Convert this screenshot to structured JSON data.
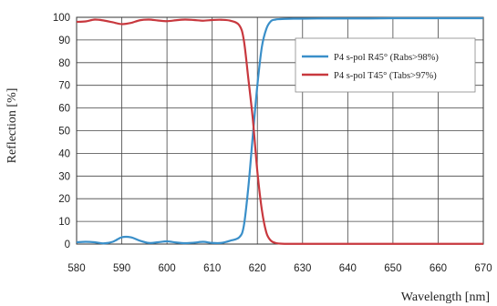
{
  "chart_data": {
    "type": "line",
    "xlabel": "Wavelength [nm]",
    "ylabel": "Reflection [%]",
    "xlim": [
      580,
      670
    ],
    "ylim": [
      0,
      100
    ],
    "x_ticks": [
      580,
      590,
      600,
      610,
      620,
      630,
      640,
      650,
      660,
      670
    ],
    "y_ticks": [
      0,
      10,
      20,
      30,
      40,
      50,
      60,
      70,
      80,
      90,
      100
    ],
    "grid": true,
    "legend_position": "top-right",
    "series": [
      {
        "name": "P4 s-pol R45° (Rabs>98%)",
        "color": "#3a8fc9",
        "x": [
          580,
          582,
          584,
          586,
          588,
          590,
          592,
          594,
          596,
          598,
          600,
          602,
          604,
          606,
          608,
          610,
          612,
          614,
          616,
          617,
          618,
          619,
          620,
          621,
          622,
          623,
          624,
          625,
          626,
          628,
          630,
          635,
          640,
          645,
          650,
          655,
          660,
          665,
          670
        ],
        "y": [
          0.8,
          1.0,
          0.8,
          0.3,
          1.0,
          3.0,
          3.0,
          1.5,
          0.5,
          0.8,
          1.2,
          0.7,
          0.4,
          0.6,
          1.0,
          0.5,
          0.5,
          1.5,
          3.0,
          8,
          25,
          48,
          70,
          87,
          95,
          98.3,
          99.0,
          99.2,
          99.3,
          99.4,
          99.4,
          99.5,
          99.5,
          99.5,
          99.6,
          99.6,
          99.6,
          99.6,
          99.6
        ]
      },
      {
        "name": "P4 s-pol T45° (Tabs>97%)",
        "color": "#c8383e",
        "x": [
          580,
          582,
          584,
          586,
          588,
          590,
          592,
          594,
          596,
          598,
          600,
          602,
          604,
          606,
          608,
          610,
          612,
          614,
          616,
          617,
          618,
          619,
          620,
          621,
          622,
          623,
          624,
          625,
          626,
          628,
          630,
          635,
          640,
          645,
          650,
          655,
          660,
          665,
          670
        ],
        "y": [
          98.0,
          98.2,
          99.0,
          98.6,
          97.8,
          97.0,
          97.5,
          98.7,
          99.0,
          98.6,
          98.3,
          98.7,
          99.0,
          98.8,
          98.5,
          98.8,
          98.9,
          98.5,
          96.5,
          90,
          73,
          55,
          32,
          15,
          5,
          1.5,
          0.5,
          0.2,
          0.1,
          0.1,
          0.1,
          0.1,
          0.1,
          0.1,
          0.1,
          0.1,
          0.1,
          0.1,
          0.1
        ]
      }
    ]
  }
}
